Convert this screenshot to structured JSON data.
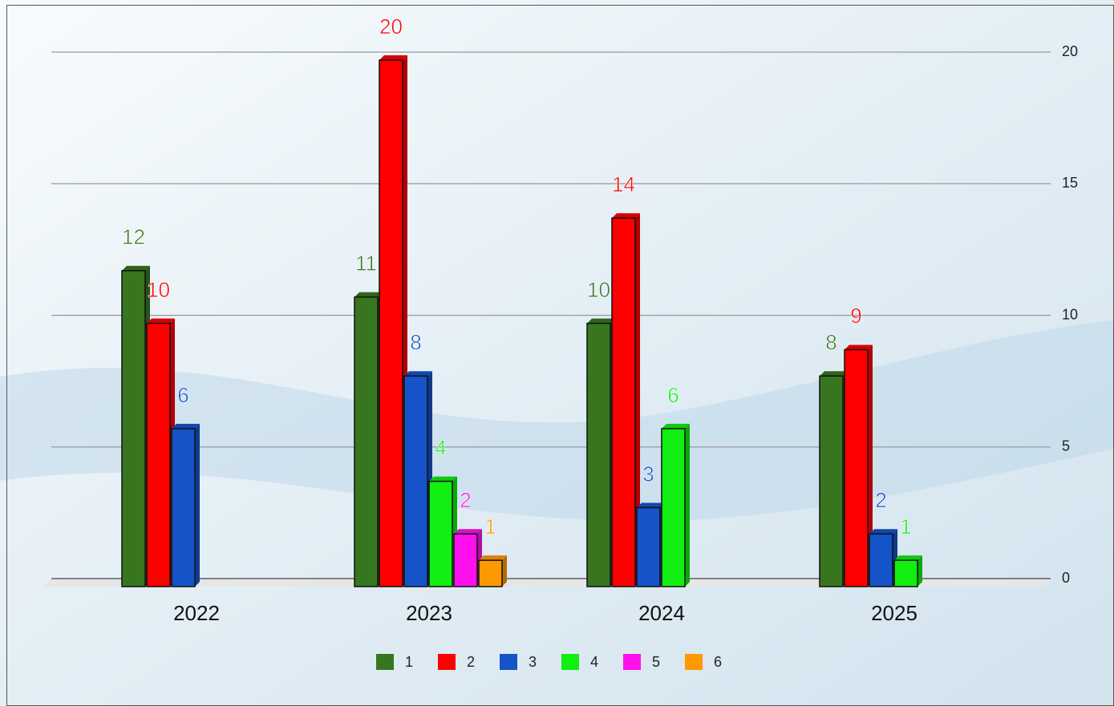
{
  "chart_data": {
    "type": "bar3d",
    "categories": [
      "2022",
      "2023",
      "2024",
      "2025"
    ],
    "series": [
      {
        "name": "1",
        "color": "#37761f",
        "values": [
          12,
          11,
          10,
          8
        ]
      },
      {
        "name": "2",
        "color": "#ff0000",
        "values": [
          10,
          20,
          14,
          9
        ]
      },
      {
        "name": "3",
        "color": "#1553c9",
        "values": [
          6,
          8,
          3,
          2
        ]
      },
      {
        "name": "4",
        "color": "#11ee11",
        "values": [
          null,
          4,
          6,
          1
        ]
      },
      {
        "name": "5",
        "color": "#ff11ee",
        "values": [
          null,
          2,
          null,
          null
        ]
      },
      {
        "name": "6",
        "color": "#ff9900",
        "values": [
          null,
          1,
          null,
          null
        ]
      }
    ],
    "ylim": [
      0,
      20
    ],
    "yticks": [
      0,
      5,
      10,
      15,
      20
    ],
    "grid": true,
    "legend": "bottom"
  }
}
